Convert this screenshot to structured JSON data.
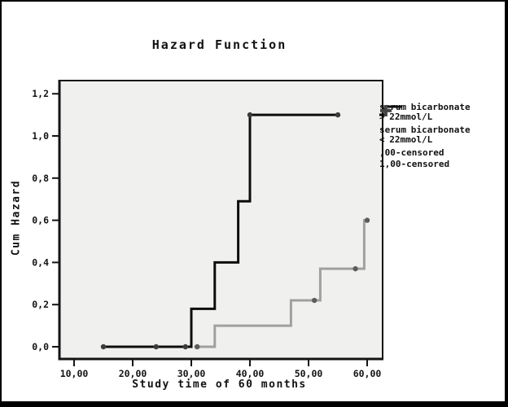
{
  "figure": {
    "title": "Hazard Function",
    "x_axis": {
      "label": "Study time of 60 months",
      "ticks": [
        {
          "value": 10,
          "label": "10,00"
        },
        {
          "value": 20,
          "label": "20,00"
        },
        {
          "value": 30,
          "label": "30,00"
        },
        {
          "value": 40,
          "label": "40,00"
        },
        {
          "value": 50,
          "label": "50,00"
        },
        {
          "value": 60,
          "label": "60,00"
        }
      ]
    },
    "y_axis": {
      "label": "Cum Hazard",
      "ticks": [
        {
          "value": 0.0,
          "label": "0,0"
        },
        {
          "value": 0.2,
          "label": "0,2"
        },
        {
          "value": 0.4,
          "label": "0,4"
        },
        {
          "value": 0.6,
          "label": "0,6"
        },
        {
          "value": 0.8,
          "label": "0,8"
        },
        {
          "value": 1.0,
          "label": "1,0"
        },
        {
          "value": 1.2,
          "label": "1,2"
        }
      ]
    }
  },
  "legend": {
    "items": [
      {
        "type": "line",
        "color": "#a0a0a0",
        "label": "serum bicarbonate > 22mmol/L"
      },
      {
        "type": "line",
        "color": "#0d0d0d",
        "label": "serum bicarbonate < 22mmol/L"
      },
      {
        "type": "cross",
        "color": "#8f8f8f",
        "label": ",00-censored"
      },
      {
        "type": "cross",
        "color": "#424242",
        "label": "1,00-censored"
      }
    ]
  },
  "chart_data": {
    "type": "line",
    "subtype": "step-cumulative-hazard",
    "title": "Hazard Function",
    "xlabel": "Study time of 60 months",
    "ylabel": "Cum Hazard",
    "xlim": [
      7.5,
      62.5
    ],
    "ylim": [
      -0.04,
      1.26
    ],
    "x_ticks": [
      10,
      20,
      30,
      40,
      50,
      60
    ],
    "y_ticks": [
      0.0,
      0.2,
      0.4,
      0.6,
      0.8,
      1.0,
      1.2
    ],
    "grid": false,
    "legend_position": "right",
    "plot_bg": "#f0f0ee",
    "series": [
      {
        "name": "serum bicarbonate > 22mmol/L",
        "color": "#a0a0a0",
        "points": [
          [
            30.5,
            0
          ],
          [
            34,
            0
          ],
          [
            34,
            0.1
          ],
          [
            47,
            0.1
          ],
          [
            47,
            0.22
          ],
          [
            52,
            0.22
          ],
          [
            52,
            0.37
          ],
          [
            59.5,
            0.37
          ],
          [
            59.5,
            0.6
          ],
          [
            60,
            0.6
          ]
        ]
      },
      {
        "name": "serum bicarbonate < 22mmol/L",
        "color": "#0d0d0d",
        "points": [
          [
            15,
            0
          ],
          [
            30,
            0
          ],
          [
            30,
            0.18
          ],
          [
            34,
            0.18
          ],
          [
            34,
            0.4
          ],
          [
            38,
            0.4
          ],
          [
            38,
            0.69
          ],
          [
            40,
            0.69
          ],
          [
            40,
            1.1
          ],
          [
            55,
            1.1
          ]
        ]
      }
    ],
    "censored": [
      {
        "name": ",00-censored",
        "color": "#5c5c5c",
        "points": [
          [
            31,
            0
          ],
          [
            51,
            0.22
          ],
          [
            58,
            0.37
          ],
          [
            60,
            0.6
          ]
        ]
      },
      {
        "name": "1,00-censored",
        "color": "#3c3c3c",
        "points": [
          [
            15,
            0
          ],
          [
            24,
            0
          ],
          [
            29,
            0
          ],
          [
            40,
            1.1
          ],
          [
            55,
            1.1
          ]
        ]
      }
    ]
  }
}
